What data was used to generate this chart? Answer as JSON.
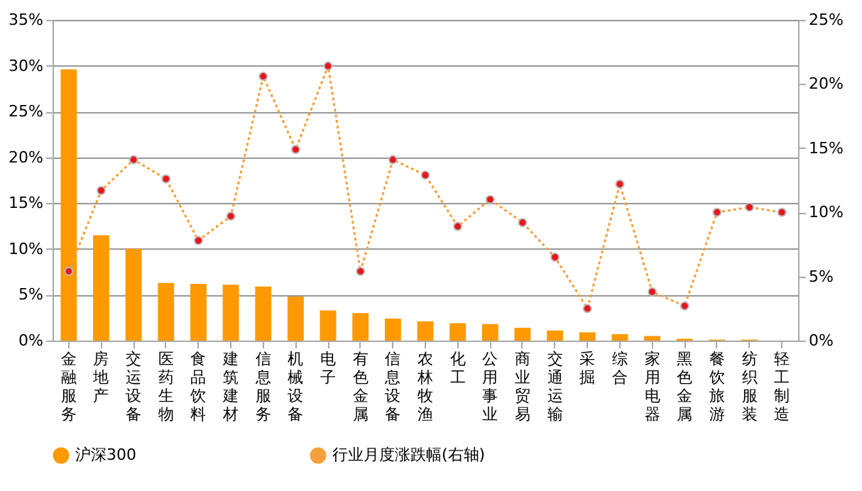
{
  "chart_data": {
    "type": "bar",
    "categories": [
      "金融服务",
      "房地产",
      "交运设备",
      "医药生物",
      "食品饮料",
      "建筑建材",
      "信息服务",
      "机械设备",
      "电子",
      "有色金属",
      "信息设备",
      "农林牧渔",
      "化工",
      "公用事业",
      "商业贸易",
      "交通运输",
      "采掘",
      "综合",
      "家用电器",
      "黑色金属",
      "餐饮旅游",
      "纺织服装",
      "轻工制造"
    ],
    "series": [
      {
        "name": "沪深300",
        "color": "#ff9900",
        "values": [
          29.6,
          11.5,
          10.0,
          6.3,
          6.2,
          6.1,
          5.9,
          4.8,
          3.3,
          3.0,
          2.4,
          2.1,
          1.9,
          1.8,
          1.4,
          1.1,
          0.9,
          0.7,
          0.5,
          0.2,
          0.1,
          0.1,
          0
        ]
      },
      {
        "name": "行业月度涨跌幅(右轴)",
        "color": "#f5a03a",
        "type": "line",
        "axis": "y2",
        "marker": "circle",
        "line_style": "dotted",
        "values": [
          5.4,
          11.7,
          14.1,
          12.6,
          7.8,
          9.7,
          20.6,
          14.9,
          21.4,
          5.4,
          14.1,
          12.9,
          8.9,
          11.0,
          9.2,
          6.5,
          2.5,
          12.2,
          3.8,
          2.7,
          10.0,
          10.4,
          10.0
        ]
      }
    ],
    "ylim": [
      0,
      35
    ],
    "yticks": [
      {
        "value": 0,
        "label": "0%"
      },
      {
        "value": 5,
        "label": "5%"
      },
      {
        "value": 10,
        "label": "10%"
      },
      {
        "value": 15,
        "label": "15%"
      },
      {
        "value": 20,
        "label": "20%"
      },
      {
        "value": 25,
        "label": "25%"
      },
      {
        "value": 30,
        "label": "30%"
      },
      {
        "value": 35,
        "label": "35%"
      }
    ],
    "y2lim": [
      0,
      25
    ],
    "y2ticks": [
      {
        "value": 0,
        "label": "0%"
      },
      {
        "value": 5,
        "label": "5%"
      },
      {
        "value": 10,
        "label": "10%"
      },
      {
        "value": 15,
        "label": "15%"
      },
      {
        "value": 20,
        "label": "20%"
      },
      {
        "value": 25,
        "label": "25%"
      }
    ],
    "grid": "y",
    "legend": "bottom"
  }
}
